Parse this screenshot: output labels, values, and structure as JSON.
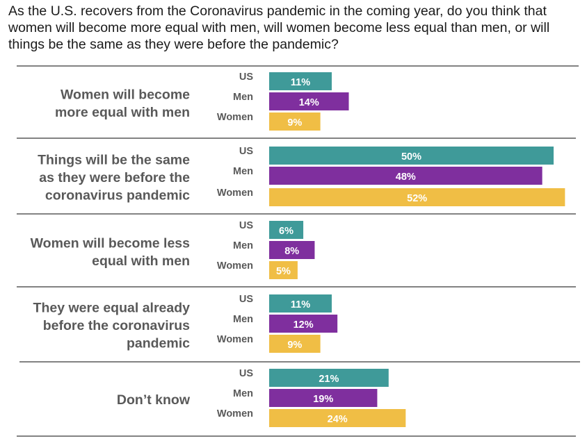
{
  "question": "As the U.S. recovers from the Coronavirus pandemic in the coming year, do you think that women will become more equal with men, will women become less equal than men, or will things be the same as they were before the pandemic?",
  "colors": {
    "US": "#3f9a99",
    "Men": "#7f2f9e",
    "Women": "#f0be45",
    "separator": "#595959",
    "label_text": "#595959"
  },
  "chart_data": {
    "type": "bar",
    "orientation": "horizontal",
    "title": "As the U.S. recovers from the Coronavirus pandemic in the coming year, do you think that women will become more equal with men, will women become less equal than men, or will things be the same as they were before the pandemic?",
    "xlim": [
      0,
      100
    ],
    "value_suffix": "%",
    "series_names": [
      "US",
      "Men",
      "Women"
    ],
    "categories": [
      {
        "label_lines": [
          "Women will become",
          "more equal with men"
        ],
        "values": {
          "US": 11,
          "Men": 14,
          "Women": 9
        }
      },
      {
        "label_lines": [
          "Things will be the same",
          "as they were before the",
          "coronavirus pandemic"
        ],
        "values": {
          "US": 50,
          "Men": 48,
          "Women": 52
        }
      },
      {
        "label_lines": [
          "Women will become less",
          "equal with men"
        ],
        "values": {
          "US": 6,
          "Men": 8,
          "Women": 5
        }
      },
      {
        "label_lines": [
          "They were equal already",
          "before the coronavirus",
          "pandemic"
        ],
        "values": {
          "US": 11,
          "Men": 12,
          "Women": 9
        }
      },
      {
        "label_lines": [
          "Don’t know"
        ],
        "values": {
          "US": 21,
          "Men": 19,
          "Women": 24
        }
      }
    ]
  }
}
